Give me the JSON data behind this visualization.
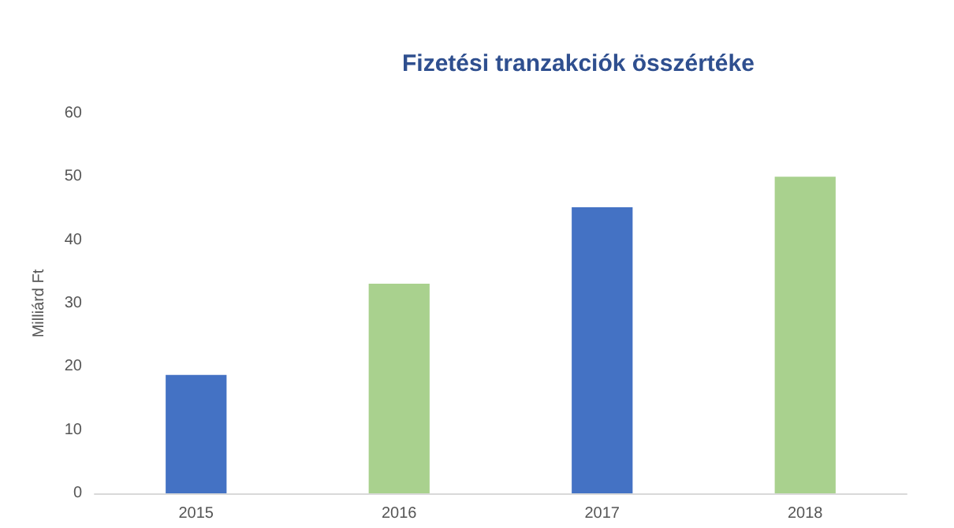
{
  "chart_data": {
    "type": "bar",
    "title": "Fizetési tranzakciók összértéke",
    "ylabel": "Milliárd Ft",
    "categories": [
      "2015",
      "2016",
      "2017",
      "2018"
    ],
    "values": [
      18.7,
      33.1,
      45.2,
      50.0
    ],
    "colors": [
      "#4472c4",
      "#a9d18e",
      "#4472c4",
      "#a9d18e"
    ],
    "ylim": [
      0,
      60
    ],
    "yticks": [
      0,
      10,
      20,
      30,
      40,
      50,
      60
    ],
    "grid": false
  }
}
